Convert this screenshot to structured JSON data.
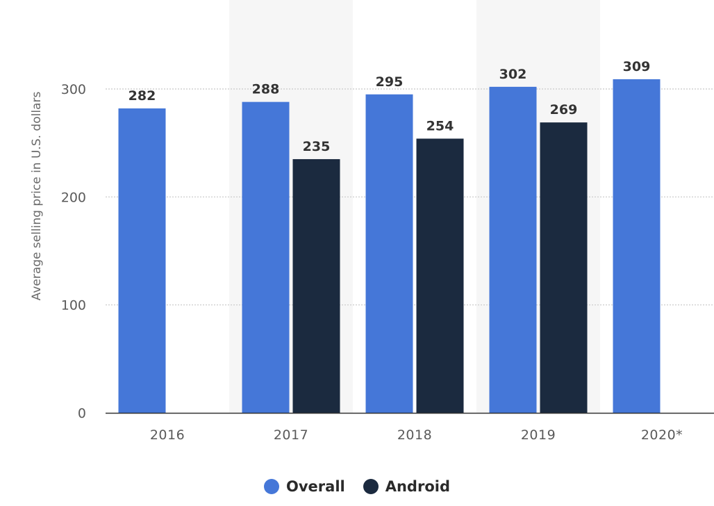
{
  "chart_data": {
    "type": "bar",
    "categories": [
      "2016",
      "2017",
      "2018",
      "2019",
      "2020*"
    ],
    "series": [
      {
        "name": "Overall",
        "color": "#4577d8",
        "values": [
          282,
          288,
          295,
          302,
          309
        ]
      },
      {
        "name": "Android",
        "color": "#1b2a3f",
        "values": [
          null,
          235,
          254,
          269,
          null
        ]
      }
    ],
    "ylabel": "Average selling price in U.S. dollars",
    "xlabel": "",
    "ylim": [
      0,
      300
    ],
    "yticks": [
      0,
      100,
      200,
      300
    ],
    "grid": true,
    "legend_position": "bottom-center",
    "show_data_labels": true
  }
}
